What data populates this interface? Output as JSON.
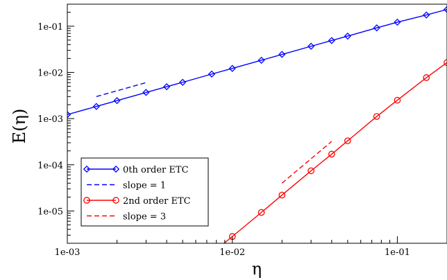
{
  "chart_data": {
    "type": "line",
    "xscale": "log",
    "yscale": "log",
    "xlim": [
      0.001,
      0.2
    ],
    "ylim": [
      2e-06,
      0.3
    ],
    "xlabel": "η",
    "ylabel": "E(η)",
    "grid": false,
    "legend_position": "bottom-left",
    "x_ticks": [
      {
        "value": 0.001,
        "label": "1e-03"
      },
      {
        "value": 0.01,
        "label": "1e-02"
      },
      {
        "value": 0.1,
        "label": "1e-01"
      }
    ],
    "y_ticks": [
      {
        "value": 1e-05,
        "label": "1e-05"
      },
      {
        "value": 0.0001,
        "label": "1e-04"
      },
      {
        "value": 0.001,
        "label": "1e-03"
      },
      {
        "value": 0.01,
        "label": "1e-02"
      },
      {
        "value": 0.1,
        "label": "1e-01"
      }
    ],
    "series": [
      {
        "name": "0th order ETC",
        "color": "#0000ff",
        "marker": "diamond",
        "dash": "solid",
        "x": [
          0.001,
          0.0015,
          0.002,
          0.003,
          0.004,
          0.005,
          0.0075,
          0.01,
          0.015,
          0.02,
          0.03,
          0.04,
          0.05,
          0.075,
          0.1,
          0.15,
          0.2
        ],
        "y": [
          0.00122,
          0.00183,
          0.00245,
          0.00368,
          0.0049,
          0.0061,
          0.0092,
          0.0122,
          0.0183,
          0.0245,
          0.0368,
          0.049,
          0.061,
          0.092,
          0.122,
          0.175,
          0.23
        ]
      },
      {
        "name": "slope = 1",
        "color": "#0000ff",
        "marker": "none",
        "dash": "dashed",
        "x": [
          0.0015,
          0.003
        ],
        "y": [
          0.003,
          0.006
        ]
      },
      {
        "name": "2nd order ETC",
        "color": "#ff0000",
        "marker": "circle",
        "dash": "solid",
        "x": [
          0.0075,
          0.01,
          0.015,
          0.02,
          0.03,
          0.04,
          0.05,
          0.075,
          0.1,
          0.15,
          0.2
        ],
        "y": [
          1.2e-06,
          2.8e-06,
          9.3e-06,
          2.21e-05,
          7.4e-05,
          0.00017,
          0.00033,
          0.00111,
          0.0025,
          0.0077,
          0.0163
        ]
      },
      {
        "name": "slope = 3",
        "color": "#ff0000",
        "marker": "none",
        "dash": "dashed",
        "x": [
          0.02,
          0.04
        ],
        "y": [
          4e-05,
          0.00032
        ]
      }
    ]
  }
}
